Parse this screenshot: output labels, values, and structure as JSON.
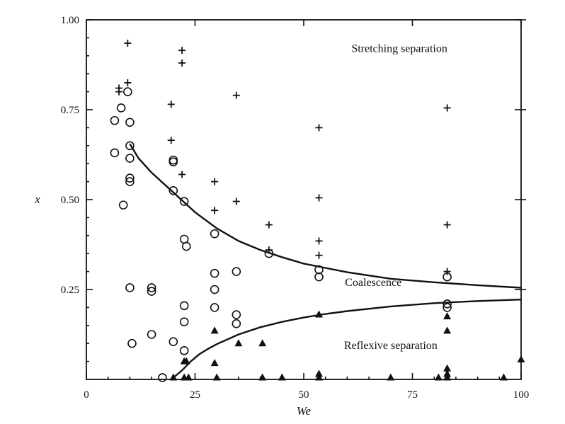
{
  "chart_data": {
    "type": "scatter",
    "title": "",
    "xlabel": "We",
    "ylabel": "x",
    "xlim": [
      0,
      100
    ],
    "ylim": [
      0,
      1
    ],
    "x_ticks": [
      "0",
      "25",
      "50",
      "75",
      "100"
    ],
    "y_ticks": [
      "0.25",
      "0.50",
      "0.75",
      "1.00"
    ],
    "grid": false,
    "annotations": [
      {
        "text": "Stretching separation",
        "x": 72,
        "y": 0.91
      },
      {
        "text": "Coalescence",
        "x": 66,
        "y": 0.26
      },
      {
        "text": "Reflexive separation",
        "x": 70,
        "y": 0.085
      }
    ],
    "series": [
      {
        "marker": "plus",
        "points": [
          [
            7.5,
            0.81
          ],
          [
            7.5,
            0.8
          ],
          [
            9.5,
            0.935
          ],
          [
            9.5,
            0.825
          ],
          [
            19.5,
            0.765
          ],
          [
            19.5,
            0.665
          ],
          [
            22,
            0.915
          ],
          [
            22,
            0.88
          ],
          [
            22,
            0.57
          ],
          [
            29.5,
            0.55
          ],
          [
            29.5,
            0.47
          ],
          [
            34.5,
            0.79
          ],
          [
            34.5,
            0.495
          ],
          [
            42,
            0.43
          ],
          [
            42,
            0.36
          ],
          [
            53.5,
            0.7
          ],
          [
            53.5,
            0.505
          ],
          [
            53.5,
            0.385
          ],
          [
            53.5,
            0.345
          ],
          [
            83,
            0.755
          ],
          [
            83,
            0.43
          ],
          [
            83,
            0.3
          ]
        ]
      },
      {
        "marker": "circle",
        "points": [
          [
            6.5,
            0.72
          ],
          [
            6.5,
            0.63
          ],
          [
            8,
            0.755
          ],
          [
            8.5,
            0.485
          ],
          [
            9.5,
            0.8
          ],
          [
            10,
            0.715
          ],
          [
            10,
            0.65
          ],
          [
            10,
            0.615
          ],
          [
            10,
            0.56
          ],
          [
            10,
            0.55
          ],
          [
            10,
            0.255
          ],
          [
            10.5,
            0.1
          ],
          [
            15,
            0.255
          ],
          [
            15,
            0.245
          ],
          [
            15,
            0.125
          ],
          [
            17.5,
            0.005
          ],
          [
            20,
            0.61
          ],
          [
            20,
            0.605
          ],
          [
            20,
            0.525
          ],
          [
            20,
            0.105
          ],
          [
            22.5,
            0.495
          ],
          [
            22.5,
            0.39
          ],
          [
            23,
            0.37
          ],
          [
            22.5,
            0.205
          ],
          [
            22.5,
            0.16
          ],
          [
            22.5,
            0.08
          ],
          [
            29.5,
            0.405
          ],
          [
            29.5,
            0.295
          ],
          [
            29.5,
            0.25
          ],
          [
            29.5,
            0.2
          ],
          [
            34.5,
            0.3
          ],
          [
            34.5,
            0.18
          ],
          [
            34.5,
            0.155
          ],
          [
            42,
            0.35
          ],
          [
            53.5,
            0.305
          ],
          [
            53.5,
            0.285
          ],
          [
            83,
            0.285
          ],
          [
            83,
            0.21
          ],
          [
            83,
            0.2
          ]
        ]
      },
      {
        "marker": "triangle",
        "points": [
          [
            20,
            0.005
          ],
          [
            22.5,
            0.05
          ],
          [
            23,
            0.05
          ],
          [
            22.5,
            0.005
          ],
          [
            23.5,
            0.005
          ],
          [
            29.5,
            0.135
          ],
          [
            29.5,
            0.045
          ],
          [
            30,
            0.005
          ],
          [
            35,
            0.1
          ],
          [
            40.5,
            0.1
          ],
          [
            40.5,
            0.005
          ],
          [
            45,
            0.005
          ],
          [
            53.5,
            0.18
          ],
          [
            53.5,
            0.015
          ],
          [
            53.5,
            0.005
          ],
          [
            70,
            0.005
          ],
          [
            81,
            0.005
          ],
          [
            83,
            0.175
          ],
          [
            83,
            0.135
          ],
          [
            83,
            0.03
          ],
          [
            83,
            0.015
          ],
          [
            83,
            0.005
          ],
          [
            96,
            0.005
          ],
          [
            100,
            0.055
          ]
        ]
      }
    ],
    "curves": [
      {
        "points": [
          [
            10,
            0.655
          ],
          [
            12,
            0.615
          ],
          [
            15,
            0.575
          ],
          [
            20,
            0.52
          ],
          [
            25,
            0.465
          ],
          [
            30,
            0.42
          ],
          [
            35,
            0.385
          ],
          [
            40,
            0.36
          ],
          [
            45,
            0.34
          ],
          [
            50,
            0.322
          ],
          [
            55,
            0.31
          ],
          [
            60,
            0.298
          ],
          [
            70,
            0.28
          ],
          [
            80,
            0.27
          ],
          [
            90,
            0.262
          ],
          [
            100,
            0.255
          ]
        ]
      },
      {
        "points": [
          [
            20,
            0.005
          ],
          [
            22,
            0.025
          ],
          [
            24,
            0.05
          ],
          [
            26,
            0.07
          ],
          [
            28,
            0.085
          ],
          [
            30,
            0.098
          ],
          [
            35,
            0.125
          ],
          [
            40,
            0.145
          ],
          [
            45,
            0.16
          ],
          [
            50,
            0.172
          ],
          [
            55,
            0.182
          ],
          [
            60,
            0.19
          ],
          [
            70,
            0.203
          ],
          [
            80,
            0.212
          ],
          [
            90,
            0.218
          ],
          [
            100,
            0.222
          ]
        ]
      }
    ]
  }
}
